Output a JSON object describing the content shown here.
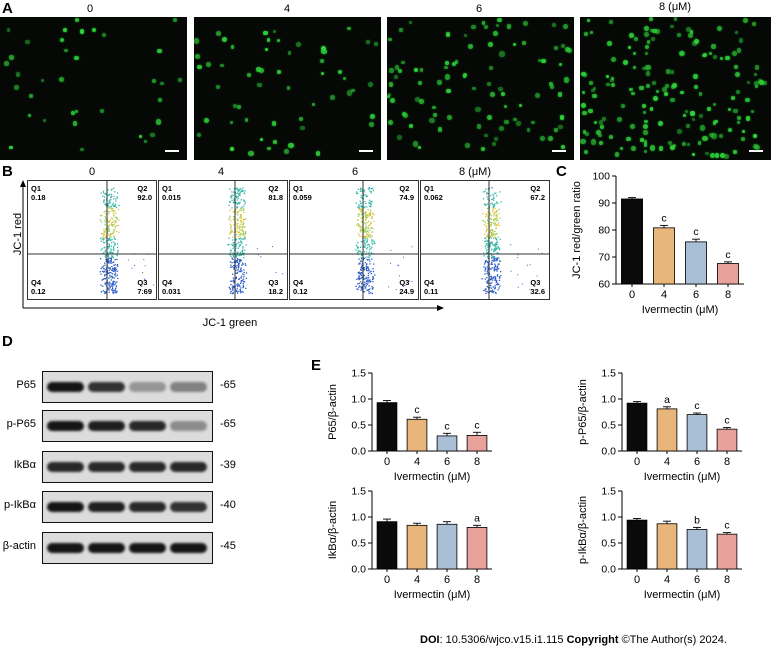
{
  "panel_letters": {
    "a": "A",
    "b": "B",
    "c": "C",
    "d": "D",
    "e": "E"
  },
  "doses": [
    "0",
    "4",
    "6",
    "8"
  ],
  "dose_last_unit": "8 (μM)",
  "flow": {
    "y_label": "JC-1 red",
    "x_label": "JC-1 green",
    "plots": [
      {
        "q1": "Q1",
        "q1v": "0.18",
        "q2": "Q2",
        "q2v": "92.0",
        "q3": "Q3",
        "q3v": "7.69",
        "q4": "Q4",
        "q4v": "0.12"
      },
      {
        "q1": "Q1",
        "q1v": "0.015",
        "q2": "Q2",
        "q2v": "81.8",
        "q3": "Q3",
        "q3v": "18.2",
        "q4": "Q4",
        "q4v": "0.031"
      },
      {
        "q1": "Q1",
        "q1v": "0.059",
        "q2": "Q2",
        "q2v": "74.9",
        "q3": "Q3",
        "q3v": "24.9",
        "q4": "Q4",
        "q4v": "0.12"
      },
      {
        "q1": "Q1",
        "q1v": "0.062",
        "q2": "Q2",
        "q2v": "67.2",
        "q3": "Q3",
        "q3v": "32.6",
        "q4": "Q4",
        "q4v": "0.11"
      }
    ]
  },
  "western": {
    "proteins": [
      {
        "name": "P65",
        "kd": "-65"
      },
      {
        "name": "p-P65",
        "kd": "-65"
      },
      {
        "name": "IkBα",
        "kd": "-39"
      },
      {
        "name": "p-IkBα",
        "kd": "-40"
      },
      {
        "name": "β-actin",
        "kd": "-45"
      }
    ]
  },
  "colors": [
    "#0a0a0a",
    "#e8b57a",
    "#a9bfd6",
    "#e8a29c"
  ],
  "chart_data": [
    {
      "id": "C",
      "type": "bar",
      "categories": [
        "0",
        "4",
        "6",
        "8"
      ],
      "values": [
        91.5,
        80.8,
        75.6,
        67.6
      ],
      "errors": [
        0.5,
        0.9,
        1.0,
        0.6
      ],
      "sig": [
        "",
        "c",
        "c",
        "c"
      ],
      "ylabel": "JC-1 red/green ratio",
      "xlabel": "Ivermectin (μM)",
      "ylim": [
        60,
        100
      ],
      "yticks": [
        "60",
        "70",
        "80",
        "90",
        "100"
      ]
    },
    {
      "id": "E1",
      "type": "bar",
      "categories": [
        "0",
        "4",
        "6",
        "8"
      ],
      "values": [
        0.93,
        0.61,
        0.29,
        0.3
      ],
      "errors": [
        0.04,
        0.04,
        0.05,
        0.06
      ],
      "sig": [
        "",
        "c",
        "c",
        "c"
      ],
      "ylabel": "P65/β-actin",
      "xlabel": "Ivermectin (μM)",
      "ylim": [
        0,
        1.5
      ],
      "yticks": [
        "0.0",
        "0.5",
        "1.0",
        "1.5"
      ]
    },
    {
      "id": "E2",
      "type": "bar",
      "categories": [
        "0",
        "4",
        "6",
        "8"
      ],
      "values": [
        0.92,
        0.81,
        0.7,
        0.42
      ],
      "errors": [
        0.03,
        0.04,
        0.03,
        0.03
      ],
      "sig": [
        "",
        "a",
        "c",
        "c"
      ],
      "ylabel": "p-P65/β-actin",
      "xlabel": "Ivermectin (μM)",
      "ylim": [
        0,
        1.5
      ],
      "yticks": [
        "0.0",
        "0.5",
        "1.0",
        "1.5"
      ]
    },
    {
      "id": "E3",
      "type": "bar",
      "categories": [
        "0",
        "4",
        "6",
        "8"
      ],
      "values": [
        0.91,
        0.84,
        0.86,
        0.8
      ],
      "errors": [
        0.05,
        0.04,
        0.05,
        0.04
      ],
      "sig": [
        "",
        "",
        "",
        "a"
      ],
      "ylabel": "IkBα/β-actin",
      "xlabel": "Ivermectin (μM)",
      "ylim": [
        0,
        1.5
      ],
      "yticks": [
        "0.0",
        "0.5",
        "1.0",
        "1.5"
      ]
    },
    {
      "id": "E4",
      "type": "bar",
      "categories": [
        "0",
        "4",
        "6",
        "8"
      ],
      "values": [
        0.94,
        0.87,
        0.76,
        0.67
      ],
      "errors": [
        0.03,
        0.05,
        0.04,
        0.03
      ],
      "sig": [
        "",
        "",
        "b",
        "c"
      ],
      "ylabel": "p-IkBα/β-actin",
      "xlabel": "Ivermectin (μM)",
      "ylim": [
        0,
        1.5
      ],
      "yticks": [
        "0.0",
        "0.5",
        "1.0",
        "1.5"
      ]
    }
  ],
  "footer": {
    "doi_label": "DOI",
    "doi_value": ": 10.5306/wjco.v15.i1.115 ",
    "copyright_label": "Copyright",
    "copyright_value": " ©The Author(s) 2024."
  }
}
